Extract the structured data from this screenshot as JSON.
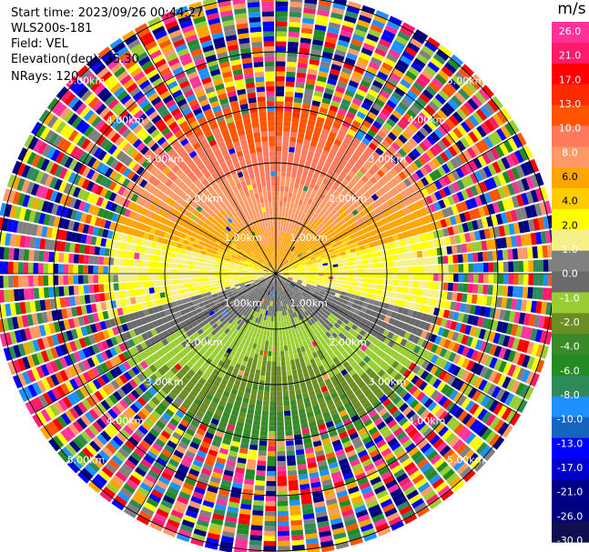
{
  "header": {
    "start_time": "Start time: 2023/09/26 00:44:27",
    "instrument": "WLS200s-181",
    "field": "Field: VEL",
    "elevation": "Elevation(deg): 35.30",
    "nrays": "NRays: 120"
  },
  "colorbar": {
    "unit": "m/s",
    "colors": [
      "#ff3399",
      "#ff1a6a",
      "#ff0000",
      "#ff2a00",
      "#ff5500",
      "#ff7a5a",
      "#ff9966",
      "#ffa500",
      "#ffcc00",
      "#ffff00",
      "#f5f08a",
      "#808080",
      "#6a6a6a",
      "#9acd32",
      "#6b8e23",
      "#3a8a2a",
      "#228b22",
      "#2e8b57",
      "#1e90ff",
      "#1565c0",
      "#0000ff",
      "#0000cd",
      "#00008b",
      "#000080",
      "#101050"
    ],
    "labels": [
      "26.0",
      "21.0",
      "17.0",
      "13.0",
      "10.0",
      "8.0",
      "6.0",
      "4.0",
      "2.0",
      "1.0",
      "0.0",
      "-1.0",
      "-2.0",
      "-4.0",
      "-6.0",
      "-8.0",
      "-10.0",
      "-13.0",
      "-17.0",
      "-21.0",
      "-26.0",
      "-30.0"
    ]
  },
  "chart_data": {
    "type": "heatmap",
    "plot_kind": "PPI",
    "field": "VEL",
    "units": "m/s",
    "vmin": -30.0,
    "vmax": 30.0,
    "n_rays": 120,
    "elevation_deg": 35.3,
    "max_range_km": 5.0,
    "range_rings_km": [
      1.0,
      2.0,
      3.0,
      4.0,
      5.0
    ],
    "range_ring_labels": [
      "1.00km",
      "2.00km",
      "3.00km",
      "4.00km",
      "5.00km"
    ],
    "valid_data_range_km": 3.0,
    "pattern": "Positive velocities (orange/red) in northern sector, near-zero (yellow/grey) along east-west, negative velocities (green/blue) in southern sector; noisy multi-colored returns beyond ~3 km."
  }
}
